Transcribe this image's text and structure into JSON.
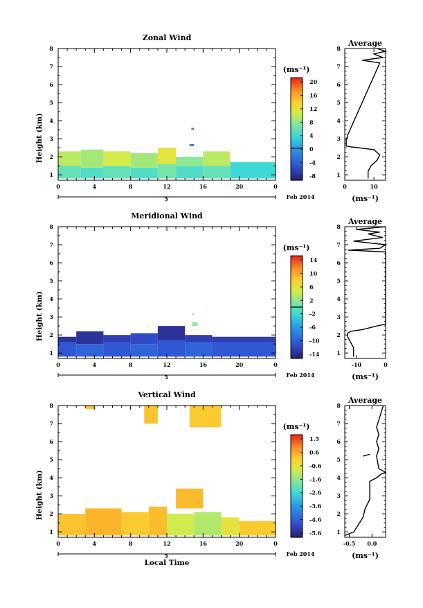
{
  "chart_data": [
    {
      "type": "heatmap",
      "title": "Zonal Wind",
      "xlabel": "",
      "ylabel": "Height (km)",
      "x_ticks": [
        "0",
        "4",
        "8",
        "12",
        "16",
        "20",
        "0"
      ],
      "xlim": [
        0,
        24
      ],
      "y_ticks": [
        "1",
        "2",
        "3",
        "4",
        "5",
        "6",
        "7",
        "8"
      ],
      "ylim": [
        0.7,
        8.0
      ],
      "date_label": "Feb 2014",
      "day_label": "5",
      "colorbar": {
        "unit": "(ms⁻¹)",
        "ticks": [
          "20",
          "16",
          "12",
          "8",
          "4",
          "0",
          "-4",
          "-8"
        ],
        "range": [
          -10,
          22
        ],
        "zero_line": 0
      },
      "cells": [
        {
          "t0": 0,
          "t1": 2.5,
          "h0": 0.8,
          "h1": 1.5,
          "v": 6
        },
        {
          "t0": 0,
          "t1": 2.5,
          "h0": 1.5,
          "h1": 2.3,
          "v": 10
        },
        {
          "t0": 2.5,
          "t1": 5,
          "h0": 0.8,
          "h1": 1.4,
          "v": 5
        },
        {
          "t0": 2.5,
          "t1": 5,
          "h0": 1.4,
          "h1": 2.4,
          "v": 9
        },
        {
          "t0": 5,
          "t1": 8,
          "h0": 0.8,
          "h1": 1.5,
          "v": 6
        },
        {
          "t0": 5,
          "t1": 8,
          "h0": 1.5,
          "h1": 2.3,
          "v": 11
        },
        {
          "t0": 8,
          "t1": 11,
          "h0": 0.8,
          "h1": 1.4,
          "v": 5
        },
        {
          "t0": 8,
          "t1": 11,
          "h0": 1.4,
          "h1": 2.2,
          "v": 9
        },
        {
          "t0": 11,
          "t1": 13,
          "h0": 0.8,
          "h1": 1.6,
          "v": 7
        },
        {
          "t0": 11,
          "t1": 13,
          "h0": 1.6,
          "h1": 2.5,
          "v": 12
        },
        {
          "t0": 13,
          "t1": 16,
          "h0": 0.8,
          "h1": 1.5,
          "v": 5
        },
        {
          "t0": 13,
          "t1": 16,
          "h0": 1.5,
          "h1": 2.0,
          "v": 8
        },
        {
          "t0": 16,
          "t1": 19,
          "h0": 0.8,
          "h1": 1.5,
          "v": 6
        },
        {
          "t0": 16,
          "t1": 19,
          "h0": 1.5,
          "h1": 2.3,
          "v": 10
        },
        {
          "t0": 19,
          "t1": 24,
          "h0": 0.8,
          "h1": 1.7,
          "v": 4
        },
        {
          "t0": 14.5,
          "t1": 15,
          "h0": 2.6,
          "h1": 2.7,
          "v": -4
        },
        {
          "t0": 14.7,
          "t1": 15,
          "h0": 3.5,
          "h1": 3.6,
          "v": -2
        }
      ],
      "profile": {
        "xlabel": "(ms⁻¹)",
        "title": "Average",
        "x_ticks": [
          "0",
          "10"
        ],
        "xlim": [
          0,
          14
        ],
        "points": [
          [
            8,
            0.8
          ],
          [
            8,
            1.2
          ],
          [
            9,
            1.5
          ],
          [
            11,
            1.8
          ],
          [
            12,
            2.1
          ],
          [
            10,
            2.4
          ],
          [
            2,
            2.55
          ],
          [
            0.5,
            2.6
          ],
          [
            0.5,
            3.0
          ],
          [
            1,
            3.1
          ],
          [
            1,
            3.2
          ],
          [
            12,
            7.2
          ],
          [
            6,
            7.35
          ],
          [
            13,
            7.5
          ],
          [
            10,
            7.7
          ],
          [
            14,
            7.85
          ],
          [
            11,
            8.0
          ]
        ]
      }
    },
    {
      "type": "heatmap",
      "title": "Meridional Wind",
      "xlabel": "",
      "ylabel": "Height (km)",
      "x_ticks": [
        "0",
        "4",
        "8",
        "12",
        "16",
        "20",
        "0"
      ],
      "xlim": [
        0,
        24
      ],
      "y_ticks": [
        "1",
        "2",
        "3",
        "4",
        "5",
        "6",
        "7",
        "8"
      ],
      "ylim": [
        0.7,
        8.0
      ],
      "date_label": "Feb 2014",
      "day_label": "5",
      "colorbar": {
        "unit": "(ms⁻¹)",
        "ticks": [
          "14",
          "10",
          "6",
          "2",
          "-2",
          "-6",
          "-10",
          "-14"
        ],
        "range": [
          -16,
          16
        ],
        "zero_line": 0
      },
      "cells": [
        {
          "t0": 0,
          "t1": 2,
          "h0": 0.8,
          "h1": 1.6,
          "v": -11
        },
        {
          "t0": 0,
          "t1": 2,
          "h0": 1.6,
          "h1": 1.9,
          "v": -14
        },
        {
          "t0": 2,
          "t1": 5,
          "h0": 0.8,
          "h1": 1.5,
          "v": -10
        },
        {
          "t0": 2,
          "t1": 5,
          "h0": 1.5,
          "h1": 2.2,
          "v": -14
        },
        {
          "t0": 5,
          "t1": 8,
          "h0": 0.8,
          "h1": 1.6,
          "v": -11
        },
        {
          "t0": 5,
          "t1": 8,
          "h0": 1.6,
          "h1": 2.0,
          "v": -13
        },
        {
          "t0": 8,
          "t1": 11,
          "h0": 0.8,
          "h1": 1.5,
          "v": -10
        },
        {
          "t0": 8,
          "t1": 11,
          "h0": 1.5,
          "h1": 2.1,
          "v": -12
        },
        {
          "t0": 11,
          "t1": 14,
          "h0": 0.8,
          "h1": 1.7,
          "v": -11
        },
        {
          "t0": 11,
          "t1": 14,
          "h0": 1.7,
          "h1": 2.5,
          "v": -14
        },
        {
          "t0": 14,
          "t1": 17,
          "h0": 0.8,
          "h1": 1.6,
          "v": -10
        },
        {
          "t0": 14,
          "t1": 17,
          "h0": 1.6,
          "h1": 2.0,
          "v": -13
        },
        {
          "t0": 17,
          "t1": 24,
          "h0": 0.8,
          "h1": 1.6,
          "v": -11
        },
        {
          "t0": 17,
          "t1": 24,
          "h0": 1.6,
          "h1": 1.9,
          "v": -13
        },
        {
          "t0": 14.8,
          "t1": 15.4,
          "h0": 2.5,
          "h1": 2.7,
          "v": 2
        },
        {
          "t0": 14.8,
          "t1": 15,
          "h0": 3.1,
          "h1": 3.2,
          "v": 2
        }
      ],
      "profile": {
        "xlabel": "(ms⁻¹)",
        "title": "Average",
        "x_ticks": [
          "-10",
          "0"
        ],
        "xlim": [
          -14,
          0
        ],
        "points": [
          [
            -11,
            0.8
          ],
          [
            -11,
            1.0
          ],
          [
            -11,
            1.3
          ],
          [
            -12,
            1.6
          ],
          [
            -13,
            1.9
          ],
          [
            -13,
            2.1
          ],
          [
            -12,
            2.2
          ],
          [
            -8,
            2.3
          ],
          [
            -3,
            2.5
          ],
          [
            0,
            2.6
          ],
          [
            0,
            6.6
          ],
          [
            -13,
            6.7
          ],
          [
            -2,
            6.8
          ],
          [
            0,
            7.0
          ],
          [
            -11,
            7.2
          ],
          [
            -1,
            7.4
          ],
          [
            -6,
            7.6
          ],
          [
            -2,
            7.7
          ],
          [
            -10,
            7.85
          ],
          [
            0,
            8.0
          ]
        ]
      }
    },
    {
      "type": "heatmap",
      "title": "Vertical Wind",
      "xlabel": "Local Time",
      "ylabel": "Height (km)",
      "x_ticks": [
        "0",
        "4",
        "8",
        "12",
        "16",
        "20",
        "0"
      ],
      "xlim": [
        0,
        24
      ],
      "y_ticks": [
        "1",
        "2",
        "3",
        "4",
        "5",
        "6",
        "7",
        "8"
      ],
      "ylim": [
        0.7,
        8.0
      ],
      "date_label": "Feb 2014",
      "day_label": "5",
      "colorbar": {
        "unit": "(ms⁻¹)",
        "ticks": [
          "1.5",
          "0.6",
          "-0.6",
          "-1.6",
          "-2.6",
          "-3.6",
          "-4.6",
          "-5.6"
        ],
        "range": [
          -6,
          2
        ],
        "zero_line": null
      },
      "cells": [
        {
          "t0": 0,
          "t1": 3,
          "h0": 0.8,
          "h1": 2.0,
          "v": 0.3
        },
        {
          "t0": 3,
          "t1": 7,
          "h0": 0.8,
          "h1": 2.3,
          "v": 0.5
        },
        {
          "t0": 7,
          "t1": 10,
          "h0": 0.8,
          "h1": 2.1,
          "v": 0.2
        },
        {
          "t0": 10,
          "t1": 12,
          "h0": 0.8,
          "h1": 2.4,
          "v": 0.4
        },
        {
          "t0": 12,
          "t1": 15,
          "h0": 0.8,
          "h1": 2.0,
          "v": -0.8
        },
        {
          "t0": 15,
          "t1": 18,
          "h0": 0.8,
          "h1": 2.1,
          "v": -1.1
        },
        {
          "t0": 18,
          "t1": 20,
          "h0": 0.8,
          "h1": 1.8,
          "v": -0.4
        },
        {
          "t0": 20,
          "t1": 24,
          "h0": 0.8,
          "h1": 1.6,
          "v": 0.2
        },
        {
          "t0": 13,
          "t1": 16,
          "h0": 2.3,
          "h1": 3.4,
          "v": 0.4
        },
        {
          "t0": 3,
          "t1": 4,
          "h0": 7.8,
          "h1": 8.0,
          "v": 0.3
        },
        {
          "t0": 9.5,
          "t1": 11,
          "h0": 7.0,
          "h1": 8.0,
          "v": 0.3
        },
        {
          "t0": 14.5,
          "t1": 18,
          "h0": 6.8,
          "h1": 8.0,
          "v": 0.2
        }
      ],
      "profile": {
        "xlabel": "(ms⁻¹)",
        "title": "Average",
        "x_ticks": [
          "-0.5",
          "0.0"
        ],
        "xlim": [
          -0.6,
          0.3
        ],
        "points": [
          [
            -0.6,
            0.8
          ],
          [
            -0.4,
            1.0
          ],
          [
            -0.3,
            1.4
          ],
          [
            -0.2,
            1.8
          ],
          [
            -0.15,
            2.3
          ],
          [
            -0.05,
            2.8
          ],
          [
            -0.05,
            3.3
          ],
          [
            -0.05,
            3.8
          ],
          [
            0.1,
            4.0
          ],
          [
            0.2,
            4.2
          ],
          [
            0.3,
            4.3
          ],
          [
            0.15,
            4.5
          ],
          [
            0.1,
            5.2
          ],
          [
            0.15,
            5.6
          ],
          [
            0.1,
            6.0
          ],
          [
            0.15,
            6.4
          ],
          [
            0.1,
            6.8
          ],
          [
            0.15,
            7.2
          ],
          [
            0.2,
            7.6
          ],
          [
            0.25,
            8.0
          ]
        ],
        "extra_points": [
          [
            -0.2,
            5.2
          ],
          [
            -0.05,
            5.3
          ]
        ]
      }
    }
  ]
}
